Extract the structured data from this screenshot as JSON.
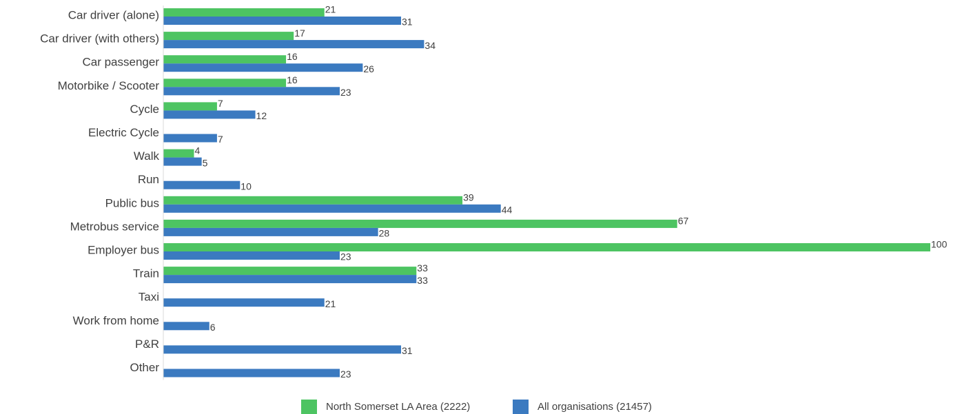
{
  "chart_data": {
    "type": "bar",
    "orientation": "horizontal",
    "categories": [
      "Car driver (alone)",
      "Car driver (with others)",
      "Car passenger",
      "Motorbike / Scooter",
      "Cycle",
      "Electric Cycle",
      "Walk",
      "Run",
      "Public bus",
      "Metrobus service",
      "Employer bus",
      "Train",
      "Taxi",
      "Work from home",
      "P&R",
      "Other"
    ],
    "series": [
      {
        "name": "North Somerset LA Area (2222)",
        "color": "#4dc462",
        "values": [
          21,
          17,
          16,
          16,
          7,
          null,
          4,
          null,
          39,
          67,
          100,
          33,
          null,
          null,
          null,
          null
        ]
      },
      {
        "name": "All organisations (21457)",
        "color": "#3b7ac0",
        "values": [
          31,
          34,
          26,
          23,
          12,
          7,
          5,
          10,
          44,
          28,
          23,
          33,
          21,
          6,
          31,
          23
        ]
      }
    ],
    "xlim": [
      0,
      100
    ],
    "legend": "bottom"
  }
}
